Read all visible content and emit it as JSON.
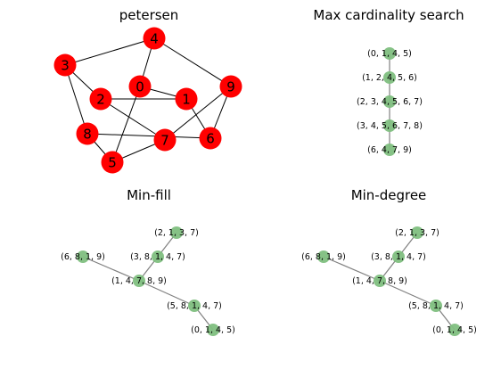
{
  "colors": {
    "petersen_node": "#ff0000",
    "tree_node": "#7fbf7f",
    "tree_edge": "#808080",
    "petersen_edge": "#000000"
  },
  "panels": [
    {
      "key": "petersen",
      "title": "petersen",
      "nodes": [
        {
          "id": "0",
          "label": "0"
        },
        {
          "id": "1",
          "label": "1"
        },
        {
          "id": "2",
          "label": "2"
        },
        {
          "id": "3",
          "label": "3"
        },
        {
          "id": "4",
          "label": "4"
        },
        {
          "id": "5",
          "label": "5"
        },
        {
          "id": "6",
          "label": "6"
        },
        {
          "id": "7",
          "label": "7"
        },
        {
          "id": "8",
          "label": "8"
        },
        {
          "id": "9",
          "label": "9"
        }
      ],
      "edges": [
        [
          "0",
          "1"
        ],
        [
          "0",
          "4"
        ],
        [
          "0",
          "5"
        ],
        [
          "1",
          "2"
        ],
        [
          "1",
          "6"
        ],
        [
          "2",
          "3"
        ],
        [
          "2",
          "7"
        ],
        [
          "3",
          "4"
        ],
        [
          "3",
          "8"
        ],
        [
          "4",
          "9"
        ],
        [
          "5",
          "7"
        ],
        [
          "5",
          "8"
        ],
        [
          "6",
          "8"
        ],
        [
          "6",
          "9"
        ],
        [
          "7",
          "9"
        ]
      ]
    },
    {
      "key": "max_cardinality",
      "title": "Max cardinality search",
      "nodes": [
        {
          "id": "a",
          "label": "(0, 1, 4, 5)"
        },
        {
          "id": "b",
          "label": "(1, 2, 4, 5, 6)"
        },
        {
          "id": "c",
          "label": "(2, 3, 4, 5, 6, 7)"
        },
        {
          "id": "d",
          "label": "(3, 4, 5, 6, 7, 8)"
        },
        {
          "id": "e",
          "label": "(6, 4, 7, 9)"
        }
      ],
      "edges": [
        [
          "a",
          "b"
        ],
        [
          "b",
          "c"
        ],
        [
          "c",
          "d"
        ],
        [
          "d",
          "e"
        ]
      ]
    },
    {
      "key": "min_fill",
      "title": "Min-fill",
      "nodes": [
        {
          "id": "a",
          "label": "(2, 1, 3, 7)"
        },
        {
          "id": "b",
          "label": "(3, 8, 1, 4, 7)"
        },
        {
          "id": "c",
          "label": "(6, 8, 1, 9)"
        },
        {
          "id": "d",
          "label": "(1, 4, 7, 8, 9)"
        },
        {
          "id": "e",
          "label": "(5, 8, 1, 4, 7)"
        },
        {
          "id": "f",
          "label": "(0, 1, 4, 5)"
        }
      ],
      "edges": [
        [
          "a",
          "b"
        ],
        [
          "b",
          "d"
        ],
        [
          "c",
          "d"
        ],
        [
          "d",
          "e"
        ],
        [
          "e",
          "f"
        ]
      ]
    },
    {
      "key": "min_degree",
      "title": "Min-degree",
      "nodes": [
        {
          "id": "a",
          "label": "(2, 1, 3, 7)"
        },
        {
          "id": "b",
          "label": "(3, 8, 1, 4, 7)"
        },
        {
          "id": "c",
          "label": "(6, 8, 1, 9)"
        },
        {
          "id": "d",
          "label": "(1, 4, 7, 8, 9)"
        },
        {
          "id": "e",
          "label": "(5, 8, 1, 4, 7)"
        },
        {
          "id": "f",
          "label": "(0, 1, 4, 5)"
        }
      ],
      "edges": [
        [
          "a",
          "b"
        ],
        [
          "b",
          "d"
        ],
        [
          "c",
          "d"
        ],
        [
          "d",
          "e"
        ],
        [
          "e",
          "f"
        ]
      ]
    }
  ]
}
